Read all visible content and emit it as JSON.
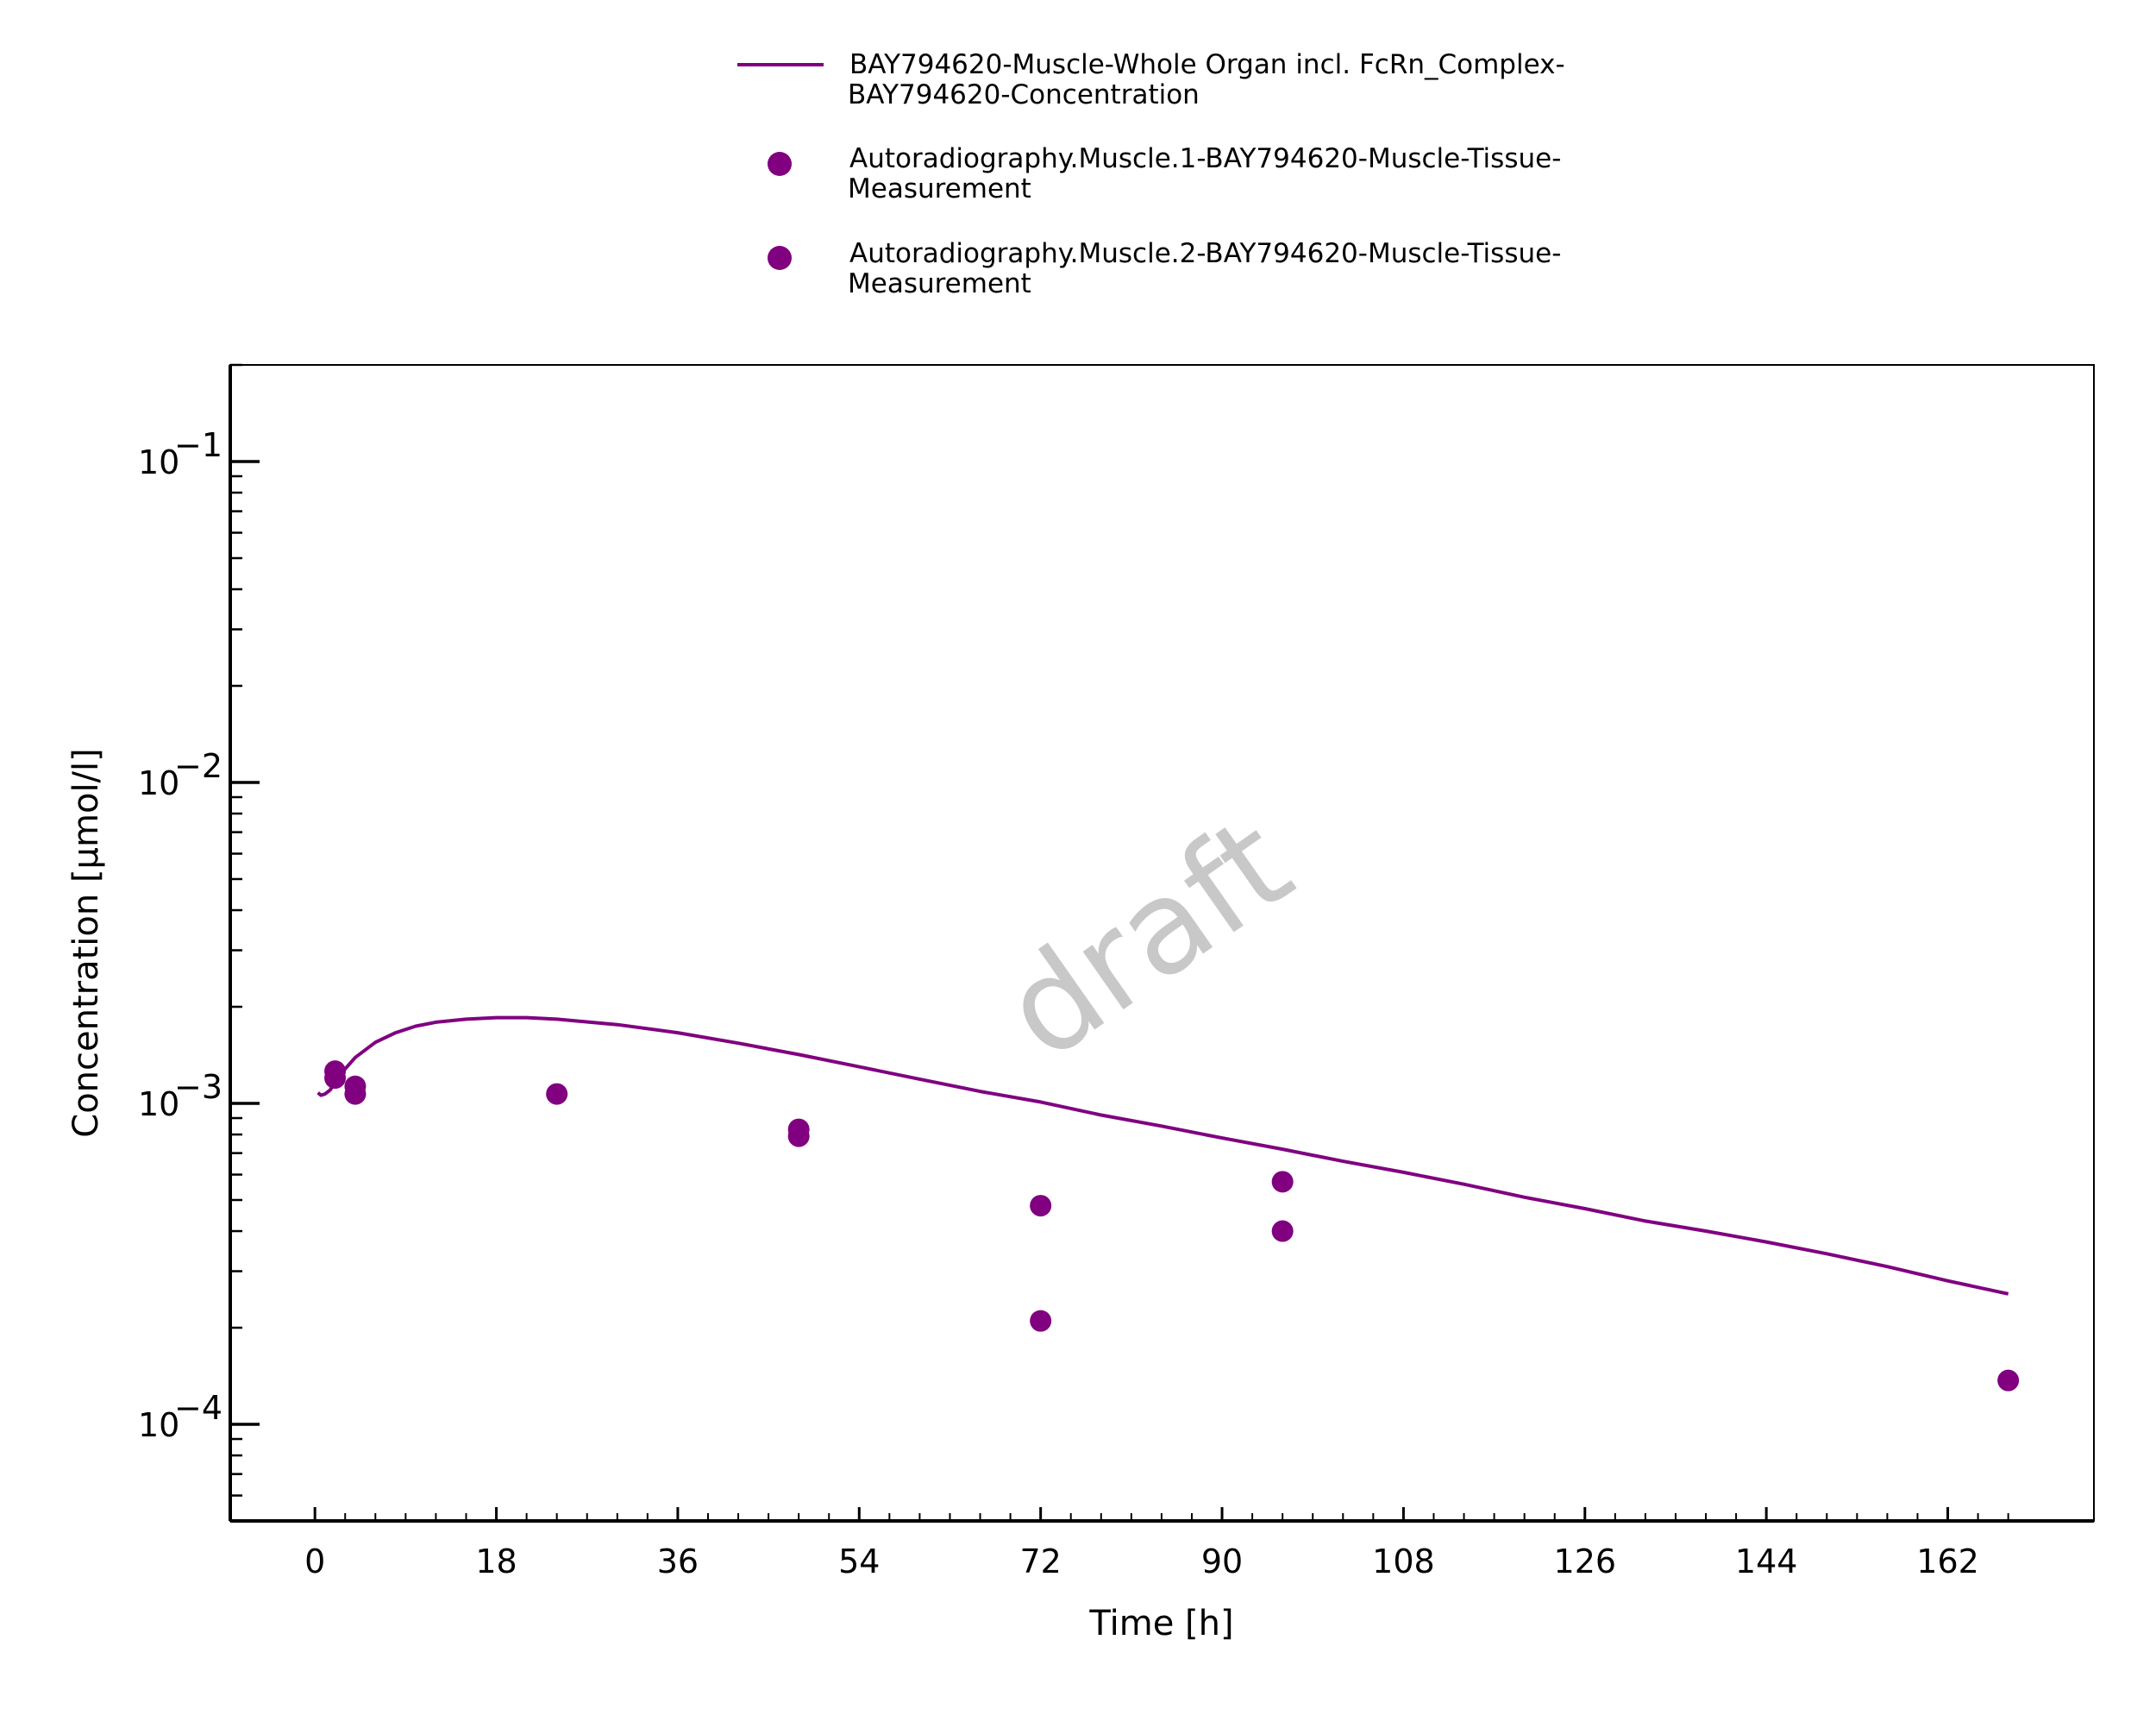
{
  "chart_data": {
    "type": "line",
    "xlabel": "Time [h]",
    "ylabel": "Concentration [µmol/l]",
    "x_scale": "linear",
    "y_scale": "log",
    "xlim": [
      -8.4,
      176.5
    ],
    "ylim": [
      5e-05,
      0.2
    ],
    "x_ticks": [
      0,
      18,
      36,
      54,
      72,
      90,
      108,
      126,
      144,
      162
    ],
    "y_ticks": [
      {
        "value": 0.0001,
        "base": "10",
        "exp": "−4"
      },
      {
        "value": 0.001,
        "base": "10",
        "exp": "−3"
      },
      {
        "value": 0.01,
        "base": "10",
        "exp": "−2"
      },
      {
        "value": 0.1,
        "base": "10",
        "exp": "−1"
      }
    ],
    "grid": false,
    "legend_position": "top",
    "watermark": "draft",
    "colors": {
      "series": "#800080"
    },
    "series": [
      {
        "name": "BAY794620-Muscle-Whole Organ incl. FcRn_Complex-BAY794620-Concentration",
        "legend_lines": [
          "BAY794620-Muscle-Whole Organ incl. FcRn_Complex-",
          "BAY794620-Concentration"
        ],
        "kind": "line",
        "x": [
          0.3,
          0.6,
          1,
          1.5,
          2,
          3,
          4,
          6,
          8,
          10,
          12,
          15,
          18,
          21,
          24,
          30,
          36,
          42,
          48,
          54,
          60,
          66,
          72,
          78,
          84,
          90,
          96,
          102,
          108,
          114,
          120,
          126,
          132,
          138,
          144,
          150,
          156,
          162,
          168
        ],
        "y": [
          0.00108,
          0.00106,
          0.00107,
          0.0011,
          0.00116,
          0.00128,
          0.00139,
          0.00155,
          0.00166,
          0.00174,
          0.00179,
          0.00183,
          0.00185,
          0.00185,
          0.00183,
          0.00176,
          0.00166,
          0.00154,
          0.00142,
          0.0013,
          0.00119,
          0.00109,
          0.00101,
          0.00092,
          0.00085,
          0.00078,
          0.00072,
          0.00066,
          0.00061,
          0.00056,
          0.00051,
          0.00047,
          0.00043,
          0.0004,
          0.00037,
          0.00034,
          0.00031,
          0.00028,
          0.000255
        ]
      },
      {
        "name": "Autoradiography.Muscle.1-BAY794620-Muscle-Tissue-Measurement",
        "legend_lines": [
          "Autoradiography.Muscle.1-BAY794620-Muscle-Tissue-",
          "Measurement"
        ],
        "kind": "scatter",
        "x": [
          2,
          4,
          24,
          48,
          72,
          96,
          168
        ],
        "y": [
          0.00126,
          0.00113,
          0.00107,
          0.00083,
          0.00048,
          0.00057,
          0.000137
        ]
      },
      {
        "name": "Autoradiography.Muscle.2-BAY794620-Muscle-Tissue-Measurement",
        "legend_lines": [
          "Autoradiography.Muscle.2-BAY794620-Muscle-Tissue-",
          "Measurement"
        ],
        "kind": "scatter",
        "x": [
          2,
          4,
          48,
          72,
          96
        ],
        "y": [
          0.0012,
          0.00107,
          0.00079,
          0.00021,
          0.0004
        ]
      }
    ]
  }
}
